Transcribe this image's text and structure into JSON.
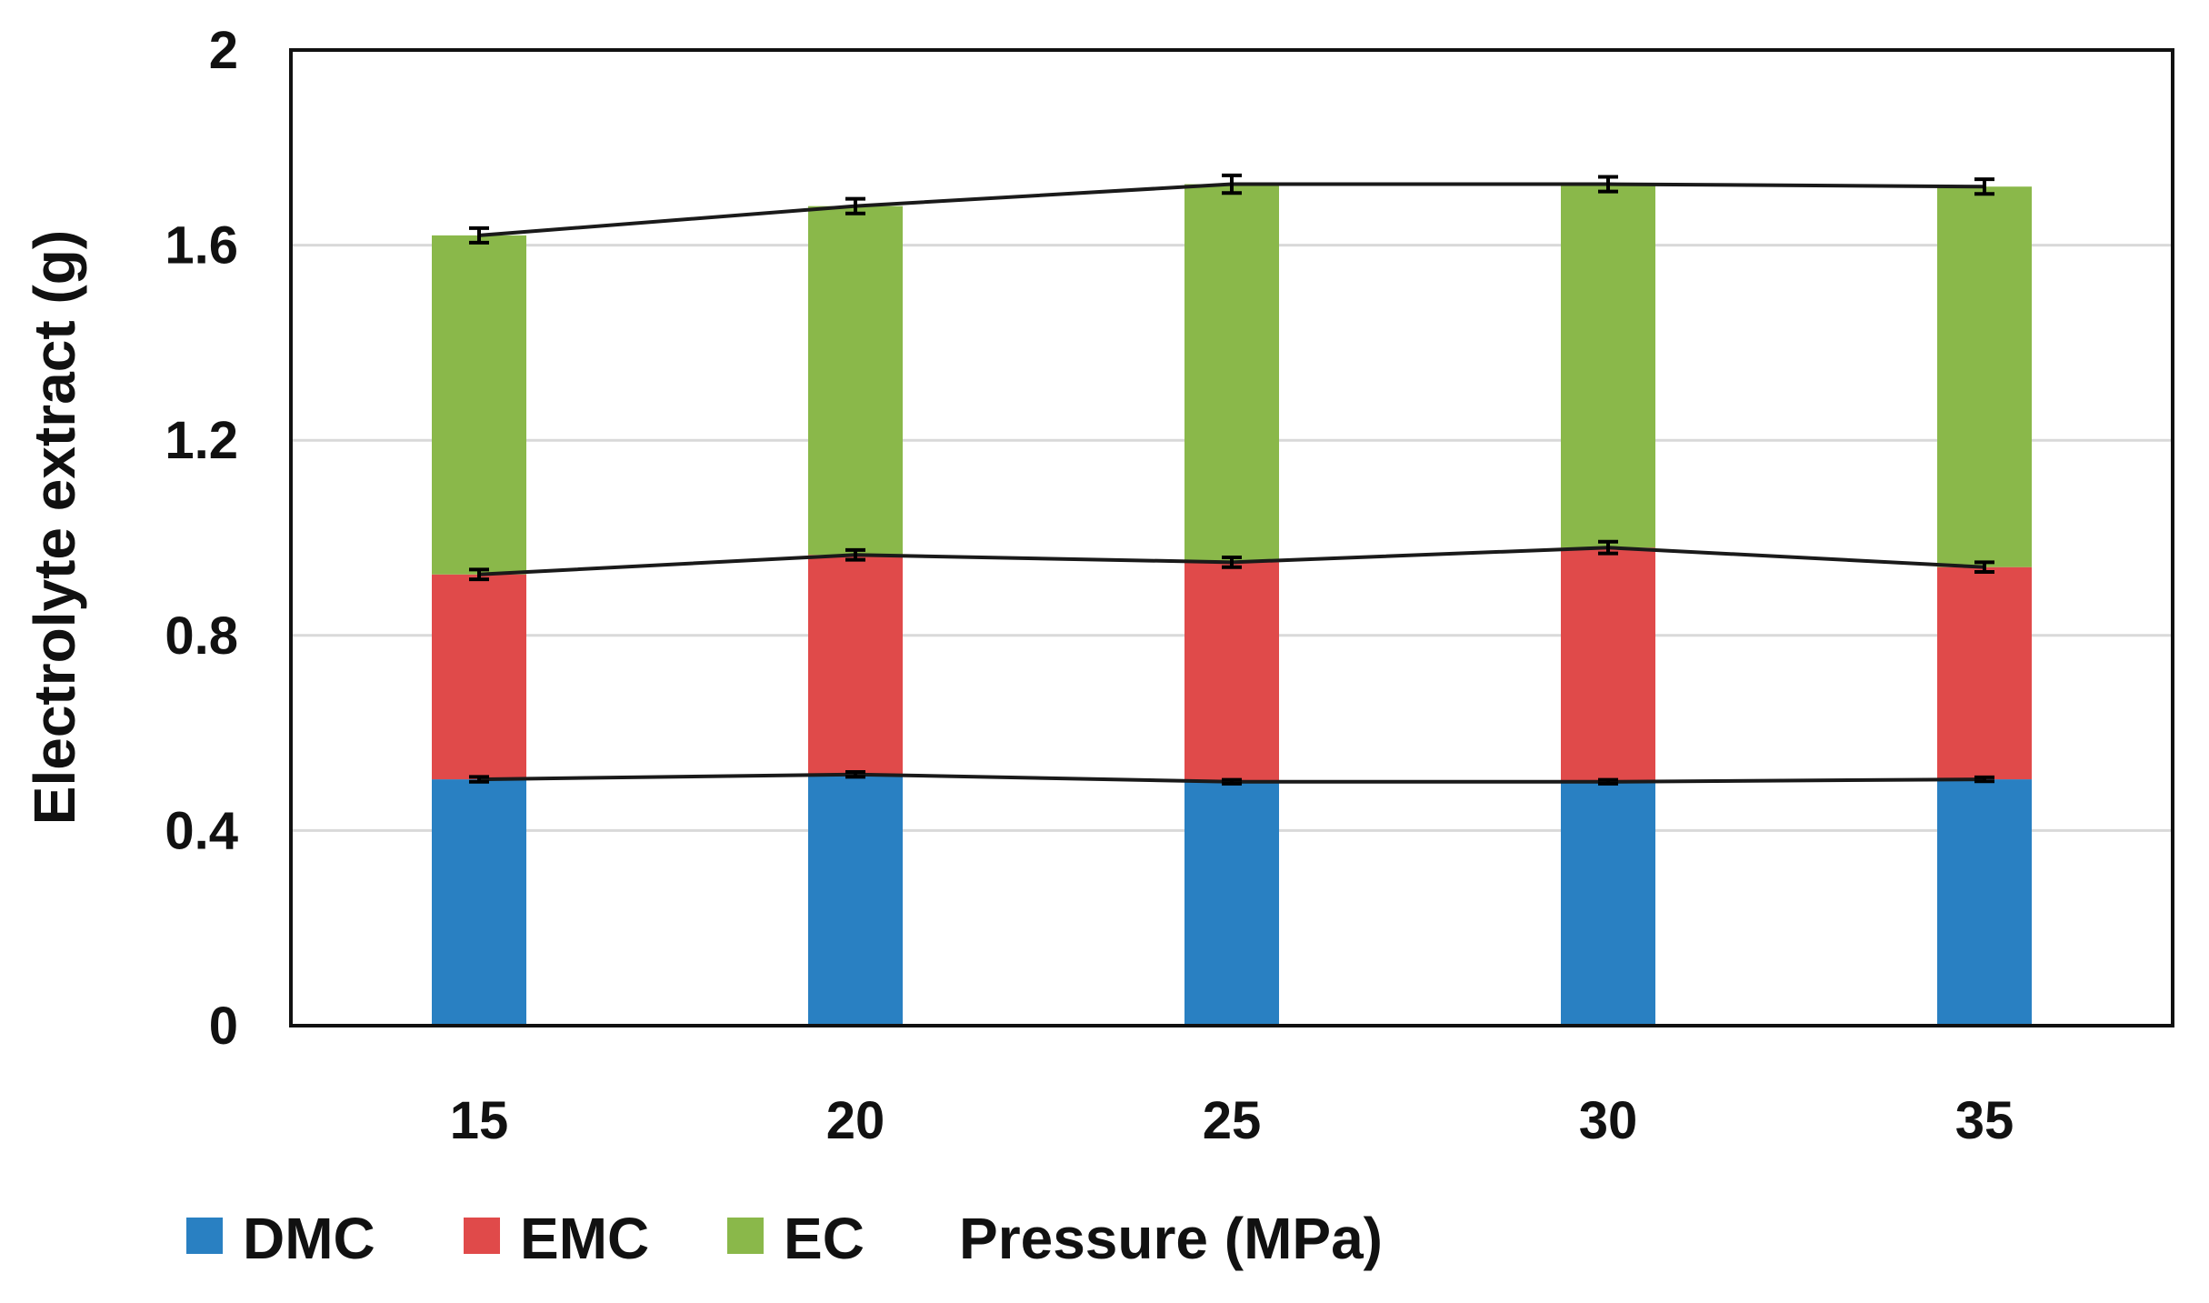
{
  "chart_data": {
    "type": "bar",
    "stacked": true,
    "title": "",
    "xlabel": "Pressure (MPa)",
    "ylabel": "Electrolyte extract (g)",
    "categories": [
      "15",
      "20",
      "25",
      "30",
      "35"
    ],
    "ylim": [
      0,
      2
    ],
    "yticks": [
      "0",
      "0.4",
      "0.8",
      "1.2",
      "1.6",
      "2"
    ],
    "grid": true,
    "legend_position": "bottom",
    "series": [
      {
        "name": "DMC",
        "color": "#2980c2",
        "values": [
          0.505,
          0.515,
          0.5,
          0.5,
          0.505
        ],
        "errors": [
          0.005,
          0.005,
          0.004,
          0.004,
          0.004
        ]
      },
      {
        "name": "EMC",
        "color": "#e04a4a",
        "values": [
          0.42,
          0.45,
          0.45,
          0.48,
          0.435
        ],
        "errors": [
          0.01,
          0.01,
          0.01,
          0.012,
          0.01
        ]
      },
      {
        "name": "EC",
        "color": "#8ab84a",
        "values": [
          0.695,
          0.715,
          0.775,
          0.745,
          0.78
        ],
        "errors": [
          0.015,
          0.015,
          0.018,
          0.015,
          0.015
        ]
      }
    ]
  }
}
